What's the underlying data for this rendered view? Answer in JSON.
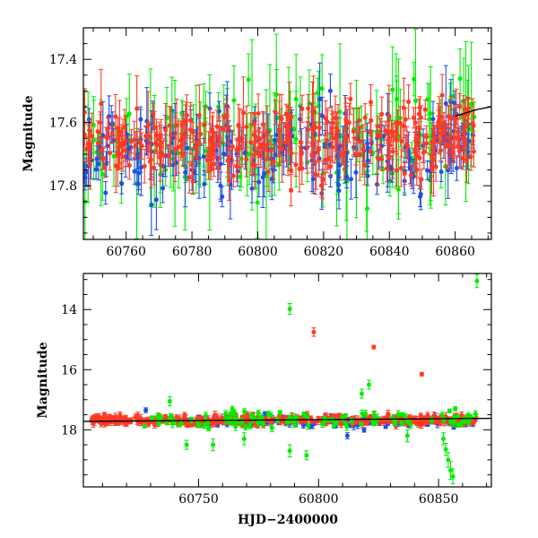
{
  "chart_data": [
    {
      "type": "scatter",
      "panel": "top",
      "title": "",
      "xlabel": "",
      "ylabel": "Magnitude",
      "xlim": [
        60747,
        60871
      ],
      "ylim": [
        17.97,
        17.3
      ],
      "y_inverted": true,
      "x_ticks": [
        60760,
        60780,
        60800,
        60820,
        60840,
        60860
      ],
      "x_tick_labels": [
        "60760",
        "60780",
        "60800",
        "60820",
        "60840",
        "60860"
      ],
      "y_ticks": [
        17.4,
        17.6,
        17.8
      ],
      "y_tick_labels": [
        "17.4",
        "17.6",
        "17.8"
      ],
      "x_range": [
        60747,
        60866
      ],
      "series": [
        {
          "color": "#00ee00",
          "n_points": 150,
          "mean": 17.66,
          "scatter": 0.09,
          "err_min": 0.04,
          "err_max": 0.3
        },
        {
          "color": "#1f4fe6",
          "n_points": 210,
          "mean": 17.7,
          "scatter": 0.06,
          "err_min": 0.03,
          "err_max": 0.14
        },
        {
          "color": "#ff3a24",
          "n_points": 330,
          "mean": 17.66,
          "scatter": 0.055,
          "err_min": 0.03,
          "err_max": 0.12
        }
      ],
      "trend": {
        "color": "#000000",
        "x": [
          60860,
          60866,
          60871
        ],
        "y": [
          17.58,
          17.56,
          17.55
        ]
      }
    },
    {
      "type": "scatter",
      "panel": "bottom",
      "title": "",
      "xlabel": "HJD−2400000",
      "ylabel": "Magnitude",
      "xlim": [
        60702,
        60872
      ],
      "ylim": [
        19.9,
        12.8
      ],
      "y_inverted": true,
      "x_ticks": [
        60750,
        60800,
        60850
      ],
      "x_tick_labels": [
        "60750",
        "60800",
        "60850"
      ],
      "y_ticks": [
        14,
        16,
        18
      ],
      "y_tick_labels": [
        "14",
        "16",
        "18"
      ],
      "series": [
        {
          "color": "#1f4fe6",
          "n_points": 120,
          "mean": 17.72,
          "scatter": 0.08,
          "x_range": [
            60745,
            60866
          ]
        },
        {
          "color": "#ff3a24",
          "n_points": 360,
          "mean": 17.68,
          "scatter": 0.08,
          "x_range": [
            60705,
            60866
          ]
        },
        {
          "color": "#00ee00",
          "n_points": 110,
          "mean": 17.65,
          "scatter": 0.15,
          "x_range": [
            60727,
            60866
          ]
        }
      ],
      "outliers": [
        {
          "color": "#00ee00",
          "x": 60788,
          "y": 13.98,
          "err": 0.18
        },
        {
          "color": "#ff3a24",
          "x": 60798,
          "y": 14.75,
          "err": 0.14
        },
        {
          "color": "#ff3a24",
          "x": 60823,
          "y": 15.25,
          "err": 0.06
        },
        {
          "color": "#ff3a24",
          "x": 60843,
          "y": 16.15,
          "err": 0.06
        },
        {
          "color": "#00ee00",
          "x": 60866,
          "y": 13.05,
          "err": 0.22
        },
        {
          "color": "#00ee00",
          "x": 60738,
          "y": 17.05,
          "err": 0.15
        },
        {
          "color": "#00ee00",
          "x": 60818,
          "y": 16.8,
          "err": 0.15
        },
        {
          "color": "#00ee00",
          "x": 60821,
          "y": 16.5,
          "err": 0.15
        },
        {
          "color": "#00ee00",
          "x": 60756,
          "y": 18.5,
          "err": 0.2
        },
        {
          "color": "#00ee00",
          "x": 60745,
          "y": 18.5,
          "err": 0.15
        },
        {
          "color": "#00ee00",
          "x": 60769,
          "y": 18.3,
          "err": 0.2
        },
        {
          "color": "#00ee00",
          "x": 60788,
          "y": 18.7,
          "err": 0.2
        },
        {
          "color": "#00ee00",
          "x": 60795,
          "y": 18.85,
          "err": 0.15
        },
        {
          "color": "#00ee00",
          "x": 60837,
          "y": 18.2,
          "err": 0.2
        },
        {
          "color": "#00ee00",
          "x": 60852,
          "y": 18.3,
          "err": 0.2
        },
        {
          "color": "#00ee00",
          "x": 60853,
          "y": 18.65,
          "err": 0.2
        },
        {
          "color": "#00ee00",
          "x": 60854,
          "y": 19.0,
          "err": 0.25
        },
        {
          "color": "#00ee00",
          "x": 60855,
          "y": 19.35,
          "err": 0.3
        },
        {
          "color": "#00ee00",
          "x": 60856,
          "y": 19.55,
          "err": 0.25
        },
        {
          "color": "#1f4fe6",
          "x": 60728,
          "y": 17.35,
          "err": 0.08
        },
        {
          "color": "#1f4fe6",
          "x": 60812,
          "y": 18.2,
          "err": 0.1
        }
      ],
      "trend": {
        "color": "#000000",
        "x": [
          60702,
          60872
        ],
        "y": [
          17.72,
          17.62
        ]
      }
    }
  ]
}
